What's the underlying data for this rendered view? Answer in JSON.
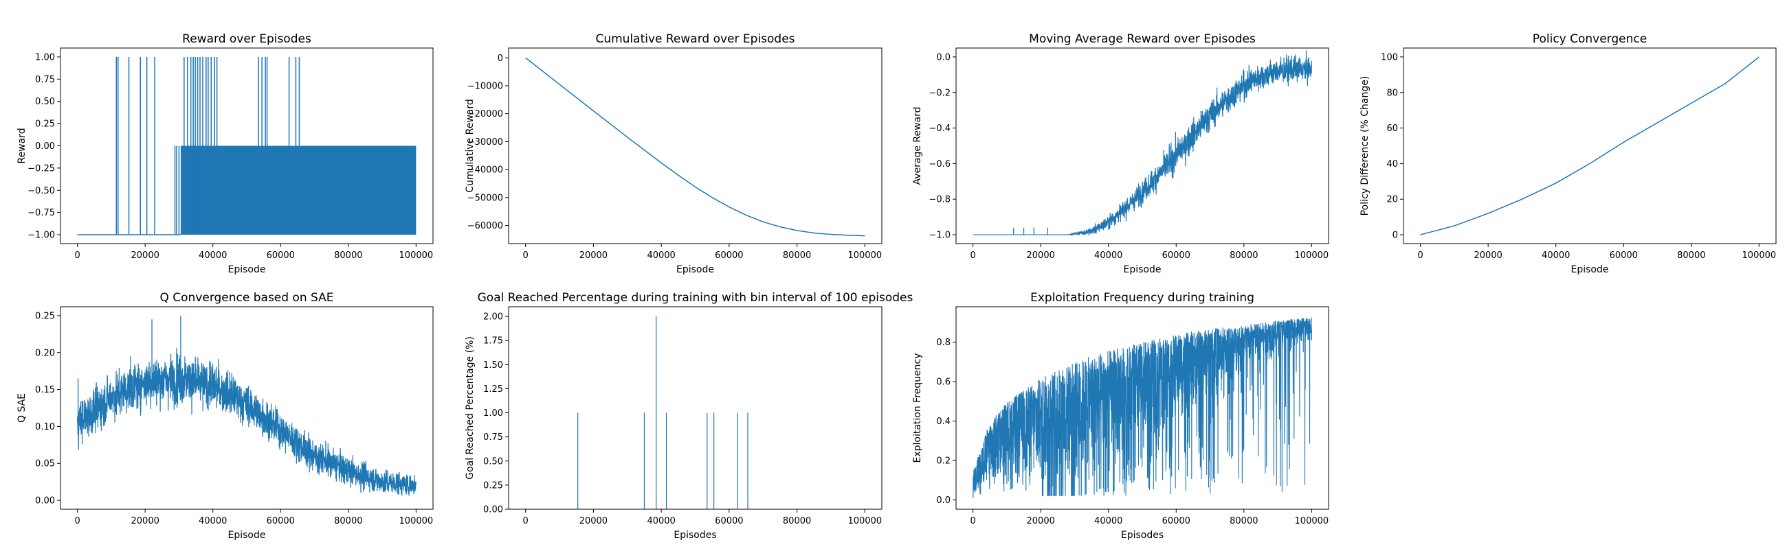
{
  "figure": {
    "suptitle": "",
    "line_color": "#1f77b4"
  },
  "chart_data": [
    {
      "type": "line",
      "title": "Reward over Episodes",
      "xlabel": "Episode",
      "ylabel": "Reward",
      "xlim": [
        -5000,
        105000
      ],
      "ylim": [
        -1.1,
        1.1
      ],
      "xticks": [
        0,
        20000,
        40000,
        60000,
        80000,
        100000
      ],
      "xtick_labels": [
        "0",
        "20000",
        "40000",
        "60000",
        "80000",
        "100000"
      ],
      "yticks": [
        -1.0,
        -0.75,
        -0.5,
        -0.25,
        0.0,
        0.25,
        0.5,
        0.75,
        1.0
      ],
      "ytick_labels": [
        "−1.00",
        "−0.75",
        "−0.50",
        "−0.25",
        "0.00",
        "0.25",
        "0.50",
        "0.75",
        "1.00"
      ],
      "series": [
        {
          "style": "dense_band",
          "band_between": [
            -1.0,
            0.0
          ],
          "band_x_range": [
            30500,
            100000
          ],
          "spikes_to_1": [
            11500,
            12000,
            15200,
            18600,
            20500,
            22800,
            31500,
            32500,
            33500,
            34200,
            34800,
            35500,
            36200,
            37000,
            38000,
            38600,
            39500,
            40500,
            41200,
            53500,
            54500,
            55500,
            56000,
            62500,
            64500,
            65500
          ],
          "spikes_to_0": [
            28800,
            29300,
            30000
          ]
        }
      ]
    },
    {
      "type": "line",
      "title": "Cumulative Reward over Episodes",
      "xlabel": "Episode",
      "ylabel": "Cumulative Reward",
      "xlim": [
        -5000,
        105000
      ],
      "ylim": [
        -66500,
        3500
      ],
      "xticks": [
        0,
        20000,
        40000,
        60000,
        80000,
        100000
      ],
      "xtick_labels": [
        "0",
        "20000",
        "40000",
        "60000",
        "80000",
        "100000"
      ],
      "yticks": [
        -60000,
        -50000,
        -40000,
        -30000,
        -20000,
        -10000,
        0
      ],
      "ytick_labels": [
        "−60000",
        "−50000",
        "−40000",
        "−30000",
        "−20000",
        "−10000",
        "0"
      ],
      "series": [
        {
          "x": [
            0,
            10000,
            20000,
            30000,
            40000,
            45000,
            50000,
            55000,
            60000,
            65000,
            70000,
            75000,
            80000,
            85000,
            90000,
            95000,
            100000
          ],
          "y": [
            0,
            -9500,
            -19000,
            -28400,
            -37600,
            -42000,
            -46200,
            -50000,
            -53400,
            -56300,
            -58700,
            -60500,
            -61800,
            -62700,
            -63200,
            -63500,
            -63700
          ]
        }
      ]
    },
    {
      "type": "line",
      "title": "Moving Average Reward over Episodes",
      "xlabel": "Episode",
      "ylabel": "Average Reward",
      "xlim": [
        -5000,
        105000
      ],
      "ylim": [
        -1.05,
        0.05
      ],
      "xticks": [
        0,
        20000,
        40000,
        60000,
        80000,
        100000
      ],
      "xtick_labels": [
        "0",
        "20000",
        "40000",
        "60000",
        "80000",
        "100000"
      ],
      "yticks": [
        -1.0,
        -0.8,
        -0.6,
        -0.4,
        -0.2,
        0.0
      ],
      "ytick_labels": [
        "−1.0",
        "−0.8",
        "−0.6",
        "−0.4",
        "−0.2",
        "0.0"
      ],
      "series": [
        {
          "style": "noisy",
          "trend_x": [
            0,
            28000,
            35000,
            40000,
            45000,
            50000,
            55000,
            60000,
            65000,
            70000,
            75000,
            80000,
            85000,
            90000,
            95000,
            100000
          ],
          "trend_y": [
            -1.0,
            -1.0,
            -0.98,
            -0.93,
            -0.85,
            -0.76,
            -0.66,
            -0.55,
            -0.44,
            -0.33,
            -0.24,
            -0.16,
            -0.11,
            -0.08,
            -0.07,
            -0.07
          ],
          "noise_x": [
            0,
            28000,
            40000,
            60000,
            80000,
            100000
          ],
          "noise_amp": [
            0.0,
            0.0,
            0.04,
            0.09,
            0.08,
            0.07
          ],
          "spikes": [
            [
              12000,
              -0.96
            ],
            [
              15000,
              -0.96
            ],
            [
              18000,
              -0.96
            ],
            [
              22000,
              -0.96
            ]
          ]
        }
      ]
    },
    {
      "type": "line",
      "title": "Policy Convergence",
      "xlabel": "Episode",
      "ylabel": "Policy Difference (% Change)",
      "xlim": [
        -5000,
        105000
      ],
      "ylim": [
        -5,
        105
      ],
      "xticks": [
        0,
        20000,
        40000,
        60000,
        80000,
        100000
      ],
      "xtick_labels": [
        "0",
        "20000",
        "40000",
        "60000",
        "80000",
        "100000"
      ],
      "yticks": [
        0,
        20,
        40,
        60,
        80,
        100
      ],
      "ytick_labels": [
        "0",
        "20",
        "40",
        "60",
        "80",
        "100"
      ],
      "series": [
        {
          "x": [
            0,
            10000,
            20000,
            30000,
            40000,
            50000,
            60000,
            70000,
            80000,
            90000,
            100000
          ],
          "y": [
            0,
            5,
            12,
            20,
            29,
            40,
            52,
            63,
            74,
            85,
            100
          ]
        }
      ]
    },
    {
      "type": "line",
      "title": "Q Convergence based on SAE",
      "xlabel": "Episode",
      "ylabel": "Q SAE",
      "xlim": [
        -5000,
        105000
      ],
      "ylim": [
        -0.012,
        0.262
      ],
      "xticks": [
        0,
        20000,
        40000,
        60000,
        80000,
        100000
      ],
      "xtick_labels": [
        "0",
        "20000",
        "40000",
        "60000",
        "80000",
        "100000"
      ],
      "yticks": [
        0.0,
        0.05,
        0.1,
        0.15,
        0.2,
        0.25
      ],
      "ytick_labels": [
        "0.00",
        "0.05",
        "0.10",
        "0.15",
        "0.20",
        "0.25"
      ],
      "series": [
        {
          "style": "noisy",
          "trend_x": [
            0,
            5000,
            10000,
            20000,
            30000,
            40000,
            50000,
            60000,
            70000,
            80000,
            90000,
            100000
          ],
          "trend_y": [
            0.105,
            0.12,
            0.14,
            0.16,
            0.165,
            0.155,
            0.13,
            0.095,
            0.06,
            0.04,
            0.025,
            0.02
          ],
          "noise_x": [
            0,
            30000,
            60000,
            100000
          ],
          "noise_amp": [
            0.03,
            0.035,
            0.025,
            0.015
          ],
          "spikes": [
            [
              200,
              0.165
            ],
            [
              30500,
              0.25
            ],
            [
              22000,
              0.245
            ]
          ]
        }
      ]
    },
    {
      "type": "bar",
      "title": "Goal Reached Percentage during training with bin interval of 100 episodes",
      "xlabel": "Episodes",
      "ylabel": "Goal Reached Percentage (%)",
      "xlim": [
        -5000,
        105000
      ],
      "ylim": [
        0,
        2.1
      ],
      "xticks": [
        0,
        20000,
        40000,
        60000,
        80000,
        100000
      ],
      "xtick_labels": [
        "0",
        "20000",
        "40000",
        "60000",
        "80000",
        "100000"
      ],
      "yticks": [
        0.0,
        0.25,
        0.5,
        0.75,
        1.0,
        1.25,
        1.5,
        1.75,
        2.0
      ],
      "ytick_labels": [
        "0.00",
        "0.25",
        "0.50",
        "0.75",
        "1.00",
        "1.25",
        "1.50",
        "1.75",
        "2.00"
      ],
      "bin_width": 100,
      "bars": [
        {
          "x": 15400,
          "value": 1.0
        },
        {
          "x": 35000,
          "value": 1.0
        },
        {
          "x": 38500,
          "value": 2.0
        },
        {
          "x": 41500,
          "value": 1.0
        },
        {
          "x": 53500,
          "value": 1.0
        },
        {
          "x": 55500,
          "value": 1.0
        },
        {
          "x": 62500,
          "value": 1.0
        },
        {
          "x": 65500,
          "value": 1.0
        }
      ]
    },
    {
      "type": "line",
      "title": "Exploitation Frequency during training",
      "xlabel": "Episodes",
      "ylabel": "Exploitation Frequency",
      "xlim": [
        -5000,
        105000
      ],
      "ylim": [
        -0.047,
        0.98
      ],
      "xticks": [
        0,
        20000,
        40000,
        60000,
        80000,
        100000
      ],
      "xtick_labels": [
        "0",
        "20000",
        "40000",
        "60000",
        "80000",
        "100000"
      ],
      "yticks": [
        0.0,
        0.2,
        0.4,
        0.6,
        0.8
      ],
      "ytick_labels": [
        "0.0",
        "0.2",
        "0.4",
        "0.6",
        "0.8"
      ],
      "series": [
        {
          "style": "envelope",
          "upper_x": [
            0,
            5000,
            10000,
            20000,
            30000,
            40000,
            50000,
            60000,
            70000,
            80000,
            90000,
            100000
          ],
          "upper_y": [
            0.15,
            0.4,
            0.5,
            0.62,
            0.7,
            0.76,
            0.8,
            0.84,
            0.87,
            0.89,
            0.91,
            0.93
          ],
          "lower_x": [
            0,
            30000,
            40000,
            50000,
            60000,
            70000,
            80000,
            90000,
            100000
          ],
          "lower_y": [
            0.0,
            0.0,
            0.05,
            0.2,
            0.35,
            0.5,
            0.62,
            0.72,
            0.8
          ],
          "deep_drop_rate": 0.08
        }
      ]
    }
  ]
}
